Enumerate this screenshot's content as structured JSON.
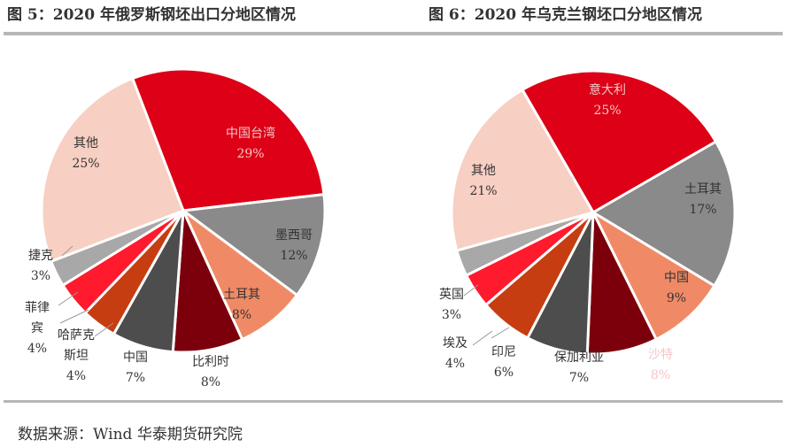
{
  "source": "数据来源：Wind 华泰期货研究院",
  "chart_data": [
    {
      "type": "pie",
      "title": "图 5：2020 年俄罗斯钢坯出口分地区情况",
      "slices": [
        {
          "label": "中国台湾",
          "value": 29,
          "pct": "29%",
          "color": "#dd0016"
        },
        {
          "label": "墨西哥",
          "value": 12,
          "pct": "12%",
          "color": "#8a8a8a"
        },
        {
          "label": "土耳其",
          "value": 8,
          "pct": "8%",
          "color": "#f08a66"
        },
        {
          "label": "比利时",
          "value": 8,
          "pct": "8%",
          "color": "#7c000c"
        },
        {
          "label": "中国",
          "value": 7,
          "pct": "7%",
          "color": "#4d4d4d"
        },
        {
          "label": "哈萨克斯坦",
          "value": 4,
          "pct": "4%",
          "color": "#c63d12"
        },
        {
          "label": "菲律宾",
          "value": 4,
          "pct": "4%",
          "color": "#ff1a2e"
        },
        {
          "label": "捷克",
          "value": 3,
          "pct": "3%",
          "color": "#a8a8a8"
        },
        {
          "label": "其他",
          "value": 25,
          "pct": "25%",
          "color": "#f7cfc3"
        }
      ]
    },
    {
      "type": "pie",
      "title": "图 6：2020 年乌克兰钢坯口分地区情况",
      "slices": [
        {
          "label": "意大利",
          "value": 25,
          "pct": "25%",
          "color": "#dd0016"
        },
        {
          "label": "土耳其",
          "value": 17,
          "pct": "17%",
          "color": "#8a8a8a"
        },
        {
          "label": "中国",
          "value": 9,
          "pct": "9%",
          "color": "#f08a66"
        },
        {
          "label": "沙特",
          "value": 8,
          "pct": "8%",
          "color": "#7c000c"
        },
        {
          "label": "保加利亚",
          "value": 7,
          "pct": "7%",
          "color": "#4d4d4d"
        },
        {
          "label": "印尼",
          "value": 6,
          "pct": "6%",
          "color": "#c63d12"
        },
        {
          "label": "埃及",
          "value": 4,
          "pct": "4%",
          "color": "#ff1a2e"
        },
        {
          "label": "英国",
          "value": 3,
          "pct": "3%",
          "color": "#a8a8a8"
        },
        {
          "label": "其他",
          "value": 21,
          "pct": "21%",
          "color": "#f7cfc3"
        }
      ]
    }
  ]
}
